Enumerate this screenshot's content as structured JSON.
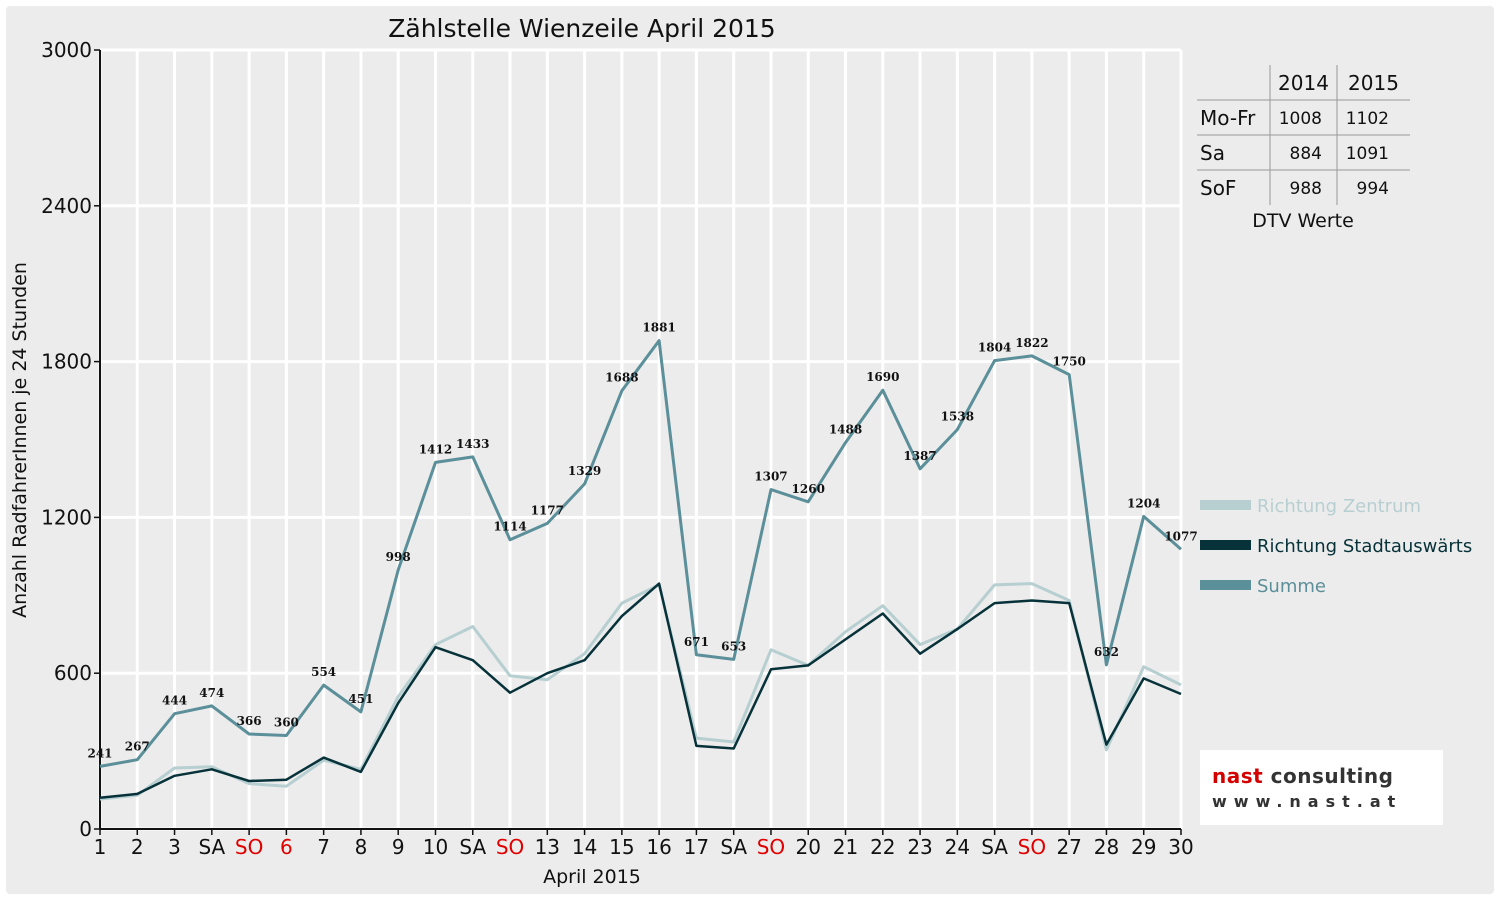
{
  "chart_data": {
    "type": "line",
    "title": "Zählstelle Wienzeile April 2015",
    "xlabel": "April 2015",
    "ylabel": "Anzahl RadfahrerInnen je 24 Stunden",
    "ylim": [
      0,
      3000
    ],
    "yticks": [
      0,
      600,
      1200,
      1800,
      2400,
      3000
    ],
    "grid": true,
    "legend_position": "right",
    "categories": [
      "1",
      "2",
      "3",
      "SA",
      "SO",
      "6",
      "7",
      "8",
      "9",
      "10",
      "SA",
      "SO",
      "13",
      "14",
      "15",
      "16",
      "17",
      "SA",
      "SO",
      "20",
      "21",
      "22",
      "23",
      "24",
      "SA",
      "SO",
      "27",
      "28",
      "29",
      "30"
    ],
    "red_categories": [
      "SO",
      "6"
    ],
    "series": [
      {
        "name": "Richtung Zentrum",
        "color": "#b7cfd1",
        "values": [
          115,
          130,
          235,
          240,
          175,
          165,
          265,
          230,
          510,
          710,
          780,
          590,
          575,
          675,
          870,
          940,
          350,
          335,
          690,
          630,
          760,
          860,
          710,
          770,
          940,
          945,
          880,
          305,
          625,
          555
        ]
      },
      {
        "name": "Richtung Stadtauswärts",
        "color": "#07323a",
        "values": [
          120,
          135,
          205,
          230,
          185,
          190,
          275,
          220,
          485,
          700,
          650,
          525,
          600,
          650,
          820,
          945,
          320,
          310,
          615,
          630,
          730,
          830,
          675,
          770,
          870,
          880,
          870,
          325,
          580,
          520
        ]
      },
      {
        "name": "Summe",
        "color": "#5b8f99",
        "values": [
          241,
          267,
          444,
          474,
          366,
          360,
          554,
          451,
          998,
          1412,
          1433,
          1114,
          1177,
          1329,
          1688,
          1881,
          671,
          653,
          1307,
          1260,
          1488,
          1690,
          1387,
          1538,
          1804,
          1822,
          1750,
          632,
          1204,
          1077
        ],
        "labels": [
          "241",
          "267",
          "444",
          "474",
          "366",
          "360",
          "554",
          "451",
          "998",
          "1412",
          "1433",
          "1114",
          "1177",
          "1329",
          "1688",
          "1881",
          "671",
          "653",
          "1307",
          "1260",
          "1488",
          "1690",
          "1387",
          "1538",
          "1804",
          "1822",
          "1750",
          "632",
          "1204",
          "1077"
        ]
      }
    ],
    "table": {
      "caption": "DTV Werte",
      "columns": [
        "2014",
        "2015"
      ],
      "rows": [
        {
          "label": "Mo-Fr",
          "values": [
            "1008",
            "1102"
          ]
        },
        {
          "label": "Sa",
          "values": [
            "884",
            "1091"
          ]
        },
        {
          "label": "SoF",
          "values": [
            "988",
            "994"
          ]
        }
      ]
    }
  },
  "logo": {
    "line1_a": "nast",
    "line1_b": " consulting",
    "line2": "www.nast.at"
  }
}
